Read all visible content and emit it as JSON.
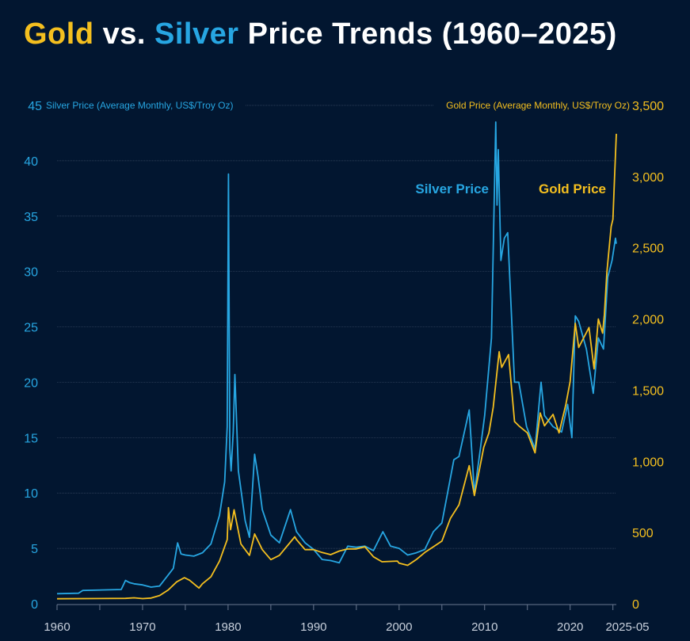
{
  "title": {
    "gold": "Gold",
    "vs": " vs. ",
    "silver": "Silver",
    "rest": " Price Trends (1960–2025)"
  },
  "colors": {
    "gold": "#f4bf1f",
    "silver": "#27a6e2",
    "background": "#021630",
    "grid": "#3a4a63"
  },
  "chart_data": {
    "type": "line",
    "title": "Gold vs. Silver Price Trends (1960–2025)",
    "y_left_label": "Silver Price (Average Monthly, US$/Troy Oz)",
    "y_right_label": "Gold Price (Average Monthly, US$/Troy Oz)",
    "y_left_ticks": [
      "0",
      "5",
      "10",
      "15",
      "20",
      "25",
      "30",
      "35",
      "40",
      "45"
    ],
    "y_right_ticks": [
      "0",
      "500",
      "1,000",
      "1,500",
      "2,000",
      "2,500",
      "3,000",
      "3,500"
    ],
    "x_ticks": [
      "1960",
      "1970",
      "1980",
      "1990",
      "2000",
      "2010",
      "2020",
      "2025-05"
    ],
    "xlim": [
      1960,
      2025.4
    ],
    "ylim_left": [
      0,
      45
    ],
    "ylim_right": [
      0,
      3500
    ],
    "grid": true,
    "annotations": {
      "silver": "Silver Price",
      "gold": "Gold Price"
    },
    "series": [
      {
        "name": "Silver Price",
        "axis": "left",
        "x": [
          1960,
          1962.5,
          1963,
          1967.5,
          1968,
          1968.5,
          1969,
          1970,
          1971,
          1972,
          1973,
          1973.6,
          1974.1,
          1974.5,
          1975,
          1976,
          1977,
          1978,
          1979,
          1979.6,
          1979.9,
          1980.05,
          1980.2,
          1980.35,
          1980.6,
          1980.8,
          1981.2,
          1982,
          1982.5,
          1983.1,
          1983.5,
          1984,
          1985,
          1986,
          1987.3,
          1988,
          1989,
          1990,
          1991,
          1992,
          1993,
          1994,
          1995,
          1996,
          1997,
          1998.1,
          1999,
          2000,
          2001,
          2002,
          2003,
          2004,
          2005,
          2006.4,
          2007,
          2008.2,
          2008.8,
          2009.5,
          2010,
          2010.8,
          2011.3,
          2011.45,
          2011.6,
          2011.9,
          2012.3,
          2012.7,
          2013.5,
          2014,
          2014.9,
          2015.9,
          2016.6,
          2017,
          2018,
          2019,
          2019.7,
          2020.2,
          2020.6,
          2021,
          2021.9,
          2022.7,
          2023.3,
          2023.9,
          2024.4,
          2024.9,
          2025.3,
          2025.4
        ],
        "y": [
          0.91,
          0.95,
          1.2,
          1.29,
          2.1,
          1.9,
          1.8,
          1.7,
          1.5,
          1.6,
          2.6,
          3.2,
          5.5,
          4.5,
          4.4,
          4.3,
          4.6,
          5.4,
          8,
          11,
          16,
          38.8,
          14,
          12,
          15.5,
          20.7,
          12,
          7.5,
          6,
          13.5,
          11.5,
          8.5,
          6.2,
          5.5,
          8.5,
          6.5,
          5.5,
          4.9,
          4,
          3.9,
          3.7,
          5.2,
          5.1,
          5.2,
          4.8,
          6.5,
          5.2,
          5,
          4.4,
          4.6,
          4.9,
          6.5,
          7.3,
          13,
          13.3,
          17.5,
          10,
          14,
          17,
          24,
          43.5,
          36,
          41,
          31,
          33,
          33.5,
          20,
          20,
          16,
          14,
          20,
          17,
          16,
          15.5,
          18,
          15,
          26,
          25.5,
          23,
          19,
          24,
          23,
          29.5,
          31,
          33,
          32.5
        ]
      },
      {
        "name": "Gold Price",
        "axis": "right",
        "x": [
          1960,
          1968,
          1969,
          1970,
          1971,
          1972,
          1973,
          1974,
          1974.9,
          1975.5,
          1976.6,
          1977,
          1978,
          1979,
          1979.9,
          1980.05,
          1980.3,
          1980.7,
          1981.5,
          1982.5,
          1983.1,
          1984,
          1985,
          1986,
          1987.8,
          1988,
          1989,
          1990,
          1991,
          1992,
          1993,
          1994,
          1995,
          1996,
          1997,
          1998,
          1999.8,
          2000,
          2001,
          2002,
          2003,
          2004,
          2005,
          2006,
          2007,
          2008.2,
          2008.8,
          2009.9,
          2010.5,
          2011,
          2011.7,
          2012,
          2012.8,
          2013.5,
          2014,
          2015,
          2015.9,
          2016.5,
          2017,
          2018,
          2018.7,
          2019.5,
          2020,
          2020.6,
          2021,
          2022.2,
          2022.8,
          2023.3,
          2023.8,
          2024,
          2024.3,
          2024.8,
          2025,
          2025.2,
          2025.4
        ],
        "y": [
          35,
          38,
          42,
          36,
          40,
          58,
          97,
          154,
          183,
          165,
          110,
          140,
          190,
          300,
          450,
          675,
          520,
          660,
          420,
          340,
          490,
          380,
          310,
          340,
          470,
          450,
          380,
          380,
          360,
          345,
          370,
          385,
          385,
          400,
          330,
          295,
          300,
          285,
          270,
          310,
          360,
          400,
          440,
          600,
          695,
          970,
          760,
          1100,
          1200,
          1380,
          1770,
          1660,
          1750,
          1280,
          1250,
          1200,
          1060,
          1340,
          1250,
          1330,
          1200,
          1400,
          1560,
          1970,
          1800,
          1940,
          1650,
          2000,
          1900,
          2030,
          2330,
          2650,
          2700,
          3000,
          3300
        ]
      }
    ]
  }
}
